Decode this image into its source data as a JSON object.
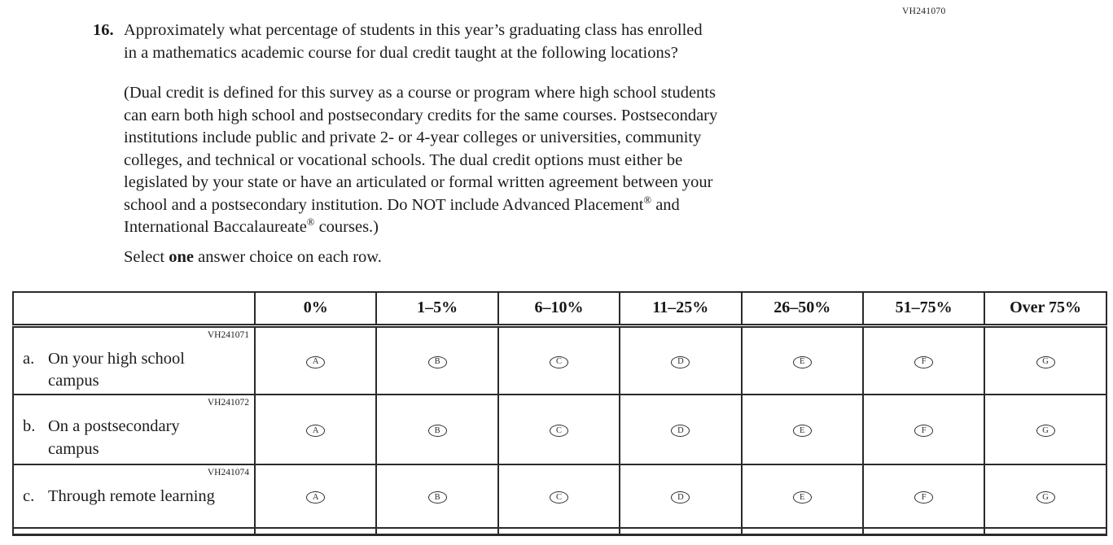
{
  "page_code": "VH241070",
  "question": {
    "number": "16.",
    "text_lines": [
      "Approximately what percentage of students in this year’s graduating class has enrolled",
      "in a mathematics academic course for dual credit taught at the following locations?"
    ],
    "definition_lines": [
      "(Dual credit is defined for this survey as a course or program where high school students",
      "can earn both high school and postsecondary credits for the same courses. Postsecondary",
      "institutions include public and private 2- or 4-year colleges or universities, community",
      "colleges, and technical or vocational schools. The dual credit options must either be",
      "legislated by your state or have an articulated or formal written agreement between your",
      "school and a postsecondary institution. Do NOT include Advanced Placement® and",
      "International Baccalaureate® courses.)"
    ],
    "instruction": {
      "pre": "Select ",
      "emphasis": "one",
      "post": " answer choice on each row."
    }
  },
  "table": {
    "column_headers": [
      "0%",
      "1–5%",
      "6–10%",
      "11–25%",
      "26–50%",
      "51–75%",
      "Over 75%"
    ],
    "choices": [
      "A",
      "B",
      "C",
      "D",
      "E",
      "F",
      "G"
    ],
    "rows": [
      {
        "code": "VH241071",
        "prefix": "a.",
        "label": "On your high school campus"
      },
      {
        "code": "VH241072",
        "prefix": "b.",
        "label": "On a postsecondary campus"
      },
      {
        "code": "VH241074",
        "prefix": "c.",
        "label": "Through remote learning"
      }
    ]
  }
}
